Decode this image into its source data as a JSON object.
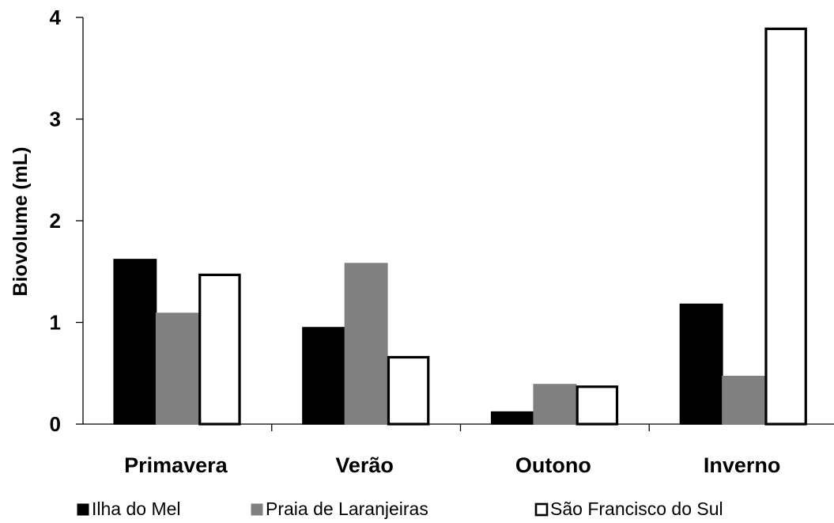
{
  "chart_data": {
    "type": "bar",
    "title": "",
    "xlabel": "",
    "ylabel": "Biovolume (mL)",
    "ylim": [
      0,
      4
    ],
    "yticks": [
      0,
      1,
      2,
      3,
      4
    ],
    "grid": false,
    "legend_position": "bottom",
    "categories": [
      "Primavera",
      "Verão",
      "Outono",
      "Inverno"
    ],
    "series": [
      {
        "name": "Ilha do Mel",
        "values": [
          1.62,
          0.95,
          0.12,
          1.18
        ],
        "color": "#000000",
        "stroke": "#000000"
      },
      {
        "name": "Praia de Laranjeiras",
        "values": [
          1.09,
          1.58,
          0.39,
          0.47
        ],
        "color": "#808080",
        "stroke": "#808080"
      },
      {
        "name": "São Francisco do Sul",
        "values": [
          1.48,
          0.67,
          0.38,
          3.9
        ],
        "color": "#ffffff",
        "stroke": "#000000"
      }
    ]
  }
}
